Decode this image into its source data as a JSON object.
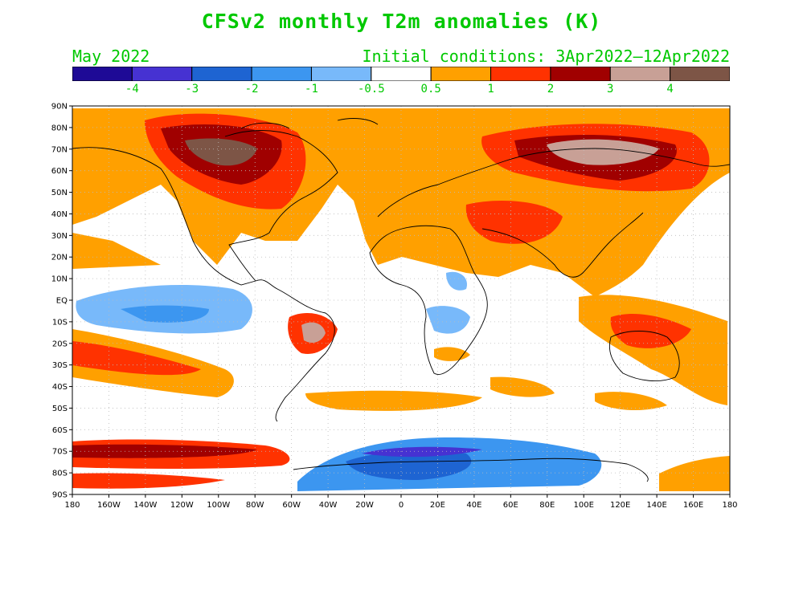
{
  "title": "CFSv2 monthly T2m anomalies (K)",
  "subtitle_left": "May 2022",
  "subtitle_right": "Initial conditions: 3Apr2022–12Apr2022",
  "legend": {
    "colors": [
      "#1e0a96",
      "#4632d2",
      "#1e64d2",
      "#3c96f0",
      "#78b9fa",
      "#ffffff",
      "#ffa000",
      "#ff3200",
      "#a00000",
      "#c8a096",
      "#7d5546"
    ],
    "labels": [
      "-4",
      "-3",
      "-2",
      "-1",
      "-0.5",
      "0.5",
      "1",
      "2",
      "3",
      "4"
    ]
  },
  "axes": {
    "lat_labels": [
      "90N",
      "80N",
      "70N",
      "60N",
      "50N",
      "40N",
      "30N",
      "20N",
      "10N",
      "EQ",
      "10S",
      "20S",
      "30S",
      "40S",
      "50S",
      "60S",
      "70S",
      "80S",
      "90S"
    ],
    "lon_labels": [
      "180",
      "160W",
      "140W",
      "120W",
      "100W",
      "80W",
      "60W",
      "40W",
      "20W",
      "0",
      "20E",
      "40E",
      "60E",
      "80E",
      "100E",
      "120E",
      "140E",
      "160E",
      "180"
    ]
  }
}
